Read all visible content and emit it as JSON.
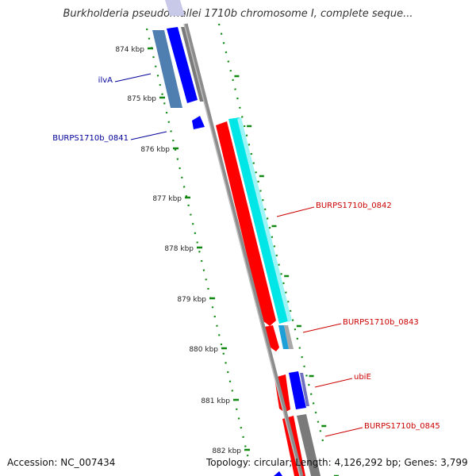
{
  "title": "Burkholderia pseudomallei 1710b chromosome I, complete seque...",
  "footer": {
    "accession": "Accession: NC_007434",
    "summary": "Topology: circular; Length: 4,126,292 bp; Genes: 3,799"
  },
  "colors": {
    "forward_gene": "#0000ff",
    "reverse_gene": "#ff0000",
    "forward_cds": "#4f7fb0",
    "reverse_cds": "#00e5e5",
    "other_feature": "#7a7a7a",
    "backbone": "#8c8c8c",
    "tick": "#118811",
    "label_forward": "#000099",
    "label_reverse": "#cc0000"
  },
  "scale": {
    "ticks": [
      "874 kbp",
      "875 kbp",
      "876 kbp",
      "877 kbp",
      "878 kbp",
      "879 kbp",
      "880 kbp",
      "881 kbp",
      "882 kbp"
    ]
  },
  "genes": [
    {
      "label": "ilvA",
      "strand": "forward"
    },
    {
      "label": "BURPS1710b_0841",
      "strand": "forward"
    },
    {
      "label": "BURPS1710b_0842",
      "strand": "reverse"
    },
    {
      "label": "BURPS1710b_0843",
      "strand": "reverse"
    },
    {
      "label": "ubiE",
      "strand": "reverse"
    },
    {
      "label": "BURPS1710b_0845",
      "strand": "reverse"
    }
  ]
}
